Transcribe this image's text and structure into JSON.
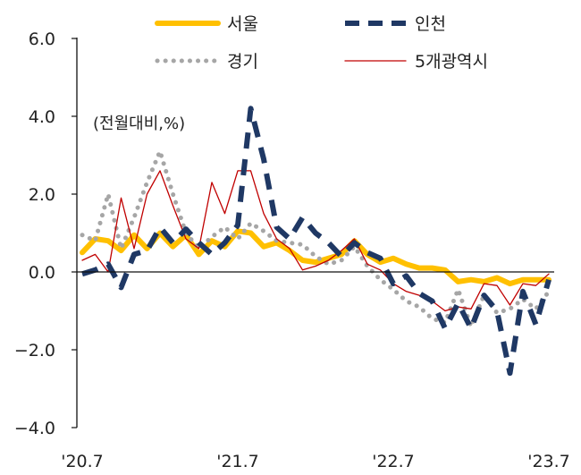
{
  "chart_data": {
    "type": "line",
    "note": "(전월대비,%)",
    "x_labels": [
      "'20.7",
      "'21.7",
      "'22.7",
      "'23.7"
    ],
    "y_ticks": [
      "6.0",
      "4.0",
      "2.0",
      "0.0",
      "−2.0",
      "−4.0"
    ],
    "ylim": [
      -4,
      6
    ],
    "xlim": [
      0,
      36
    ],
    "x": [
      0,
      1,
      2,
      3,
      4,
      5,
      6,
      7,
      8,
      9,
      10,
      11,
      12,
      13,
      14,
      15,
      16,
      17,
      18,
      19,
      20,
      21,
      22,
      23,
      24,
      25,
      26,
      27,
      28,
      29,
      30,
      31,
      32,
      33,
      34,
      35,
      36
    ],
    "series": [
      {
        "name": "서울",
        "color": "#FFC000",
        "style": "solid-thick",
        "values": [
          0.5,
          0.85,
          0.8,
          0.55,
          0.95,
          0.6,
          1.0,
          0.65,
          0.95,
          0.45,
          0.8,
          0.65,
          1.05,
          1.0,
          0.65,
          0.75,
          0.55,
          0.3,
          0.25,
          0.35,
          0.45,
          0.8,
          0.45,
          0.25,
          0.35,
          0.2,
          0.1,
          0.1,
          0.05,
          -0.25,
          -0.2,
          -0.25,
          -0.15,
          -0.3,
          -0.2,
          -0.2,
          -0.2
        ]
      },
      {
        "name": "인천",
        "color": "#1F3864",
        "style": "dashed-thick",
        "values": [
          -0.05,
          0.05,
          0.2,
          -0.4,
          0.45,
          0.55,
          1.15,
          0.75,
          1.1,
          0.75,
          0.45,
          0.75,
          1.2,
          4.2,
          2.9,
          1.15,
          0.85,
          1.4,
          1.0,
          0.75,
          0.4,
          0.75,
          0.5,
          0.35,
          -0.3,
          -0.1,
          -0.55,
          -0.75,
          -1.45,
          -0.8,
          -1.45,
          -0.6,
          -1.0,
          -2.6,
          -0.5,
          -1.35,
          -0.2
        ]
      },
      {
        "name": "경기",
        "color": "#A6A6A6",
        "style": "dotted",
        "values": [
          0.95,
          0.8,
          2.0,
          0.6,
          1.4,
          2.3,
          3.1,
          2.0,
          1.0,
          0.6,
          0.9,
          1.15,
          0.85,
          1.25,
          1.05,
          0.8,
          0.75,
          0.7,
          0.4,
          0.2,
          0.3,
          0.65,
          0.15,
          -0.2,
          -0.45,
          -0.75,
          -0.9,
          -1.2,
          -1.3,
          -0.45,
          -1.4,
          -0.6,
          -1.05,
          -0.95,
          -0.7,
          -0.95,
          -0.5
        ]
      },
      {
        "name": "5개광역시",
        "color": "#C00000",
        "style": "thin",
        "values": [
          0.3,
          0.45,
          0.0,
          1.9,
          0.6,
          2.0,
          2.6,
          1.7,
          0.85,
          0.6,
          2.3,
          1.5,
          2.6,
          2.6,
          1.5,
          0.85,
          0.6,
          0.05,
          0.15,
          0.3,
          0.55,
          0.85,
          0.2,
          0.05,
          -0.3,
          -0.5,
          -0.6,
          -0.75,
          -1.0,
          -0.9,
          -0.95,
          -0.3,
          -0.35,
          -0.85,
          -0.3,
          -0.35,
          -0.05
        ]
      }
    ],
    "legend_position": "top",
    "grid": false
  }
}
